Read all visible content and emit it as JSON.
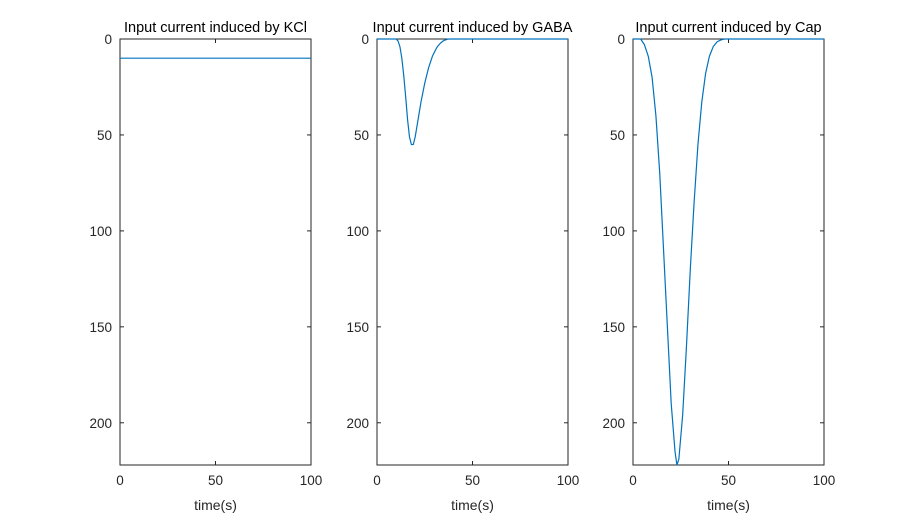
{
  "chart_data": [
    {
      "type": "line",
      "title": "Input current induced by KCl",
      "xlabel": "time(s)",
      "ylabel": "",
      "xlim": [
        0,
        100
      ],
      "ylim": [
        0,
        222
      ],
      "y_reversed": true,
      "xticks": [
        0,
        50,
        100
      ],
      "yticks": [
        0,
        50,
        100,
        150,
        200
      ],
      "grid": false,
      "color": "#0072BD",
      "series": [
        {
          "x": [
            0,
            100
          ],
          "y": [
            10,
            10
          ]
        }
      ]
    },
    {
      "type": "line",
      "title": "Input current induced by GABA",
      "xlabel": "time(s)",
      "ylabel": "",
      "xlim": [
        0,
        100
      ],
      "ylim": [
        0,
        222
      ],
      "y_reversed": true,
      "xticks": [
        0,
        50,
        100
      ],
      "yticks": [
        0,
        50,
        100,
        150,
        200
      ],
      "grid": false,
      "color": "#0072BD",
      "series": [
        {
          "x": [
            0,
            10,
            11,
            12,
            13,
            14,
            15,
            16,
            17,
            18,
            19,
            20,
            21,
            22,
            23,
            24,
            25,
            26,
            27,
            28,
            29,
            30,
            31,
            32,
            33,
            34,
            35,
            36,
            37,
            38,
            100
          ],
          "y": [
            0,
            0,
            1,
            4,
            10,
            19,
            30,
            42,
            51,
            55,
            55,
            51,
            45,
            39,
            33,
            28,
            23,
            19,
            15,
            12,
            9,
            7,
            5,
            3.5,
            2.4,
            1.5,
            0.8,
            0.4,
            0.1,
            0,
            0
          ]
        }
      ]
    },
    {
      "type": "line",
      "title": "Input current induced by Cap",
      "xlabel": "time(s)",
      "ylabel": "",
      "xlim": [
        0,
        100
      ],
      "ylim": [
        0,
        222
      ],
      "y_reversed": true,
      "xticks": [
        0,
        50,
        100
      ],
      "yticks": [
        0,
        50,
        100,
        150,
        200
      ],
      "grid": false,
      "color": "#0072BD",
      "series": [
        {
          "x": [
            0,
            4,
            6,
            8,
            10,
            12,
            14,
            16,
            18,
            20,
            22,
            23,
            24,
            26,
            28,
            30,
            32,
            34,
            36,
            38,
            40,
            42,
            44,
            46,
            48,
            100
          ],
          "y": [
            0,
            0,
            3,
            9,
            20,
            40,
            70,
            110,
            150,
            190,
            215,
            222,
            219,
            196,
            160,
            120,
            85,
            55,
            33,
            18,
            9,
            4,
            1.5,
            0.5,
            0,
            0
          ]
        }
      ]
    }
  ]
}
